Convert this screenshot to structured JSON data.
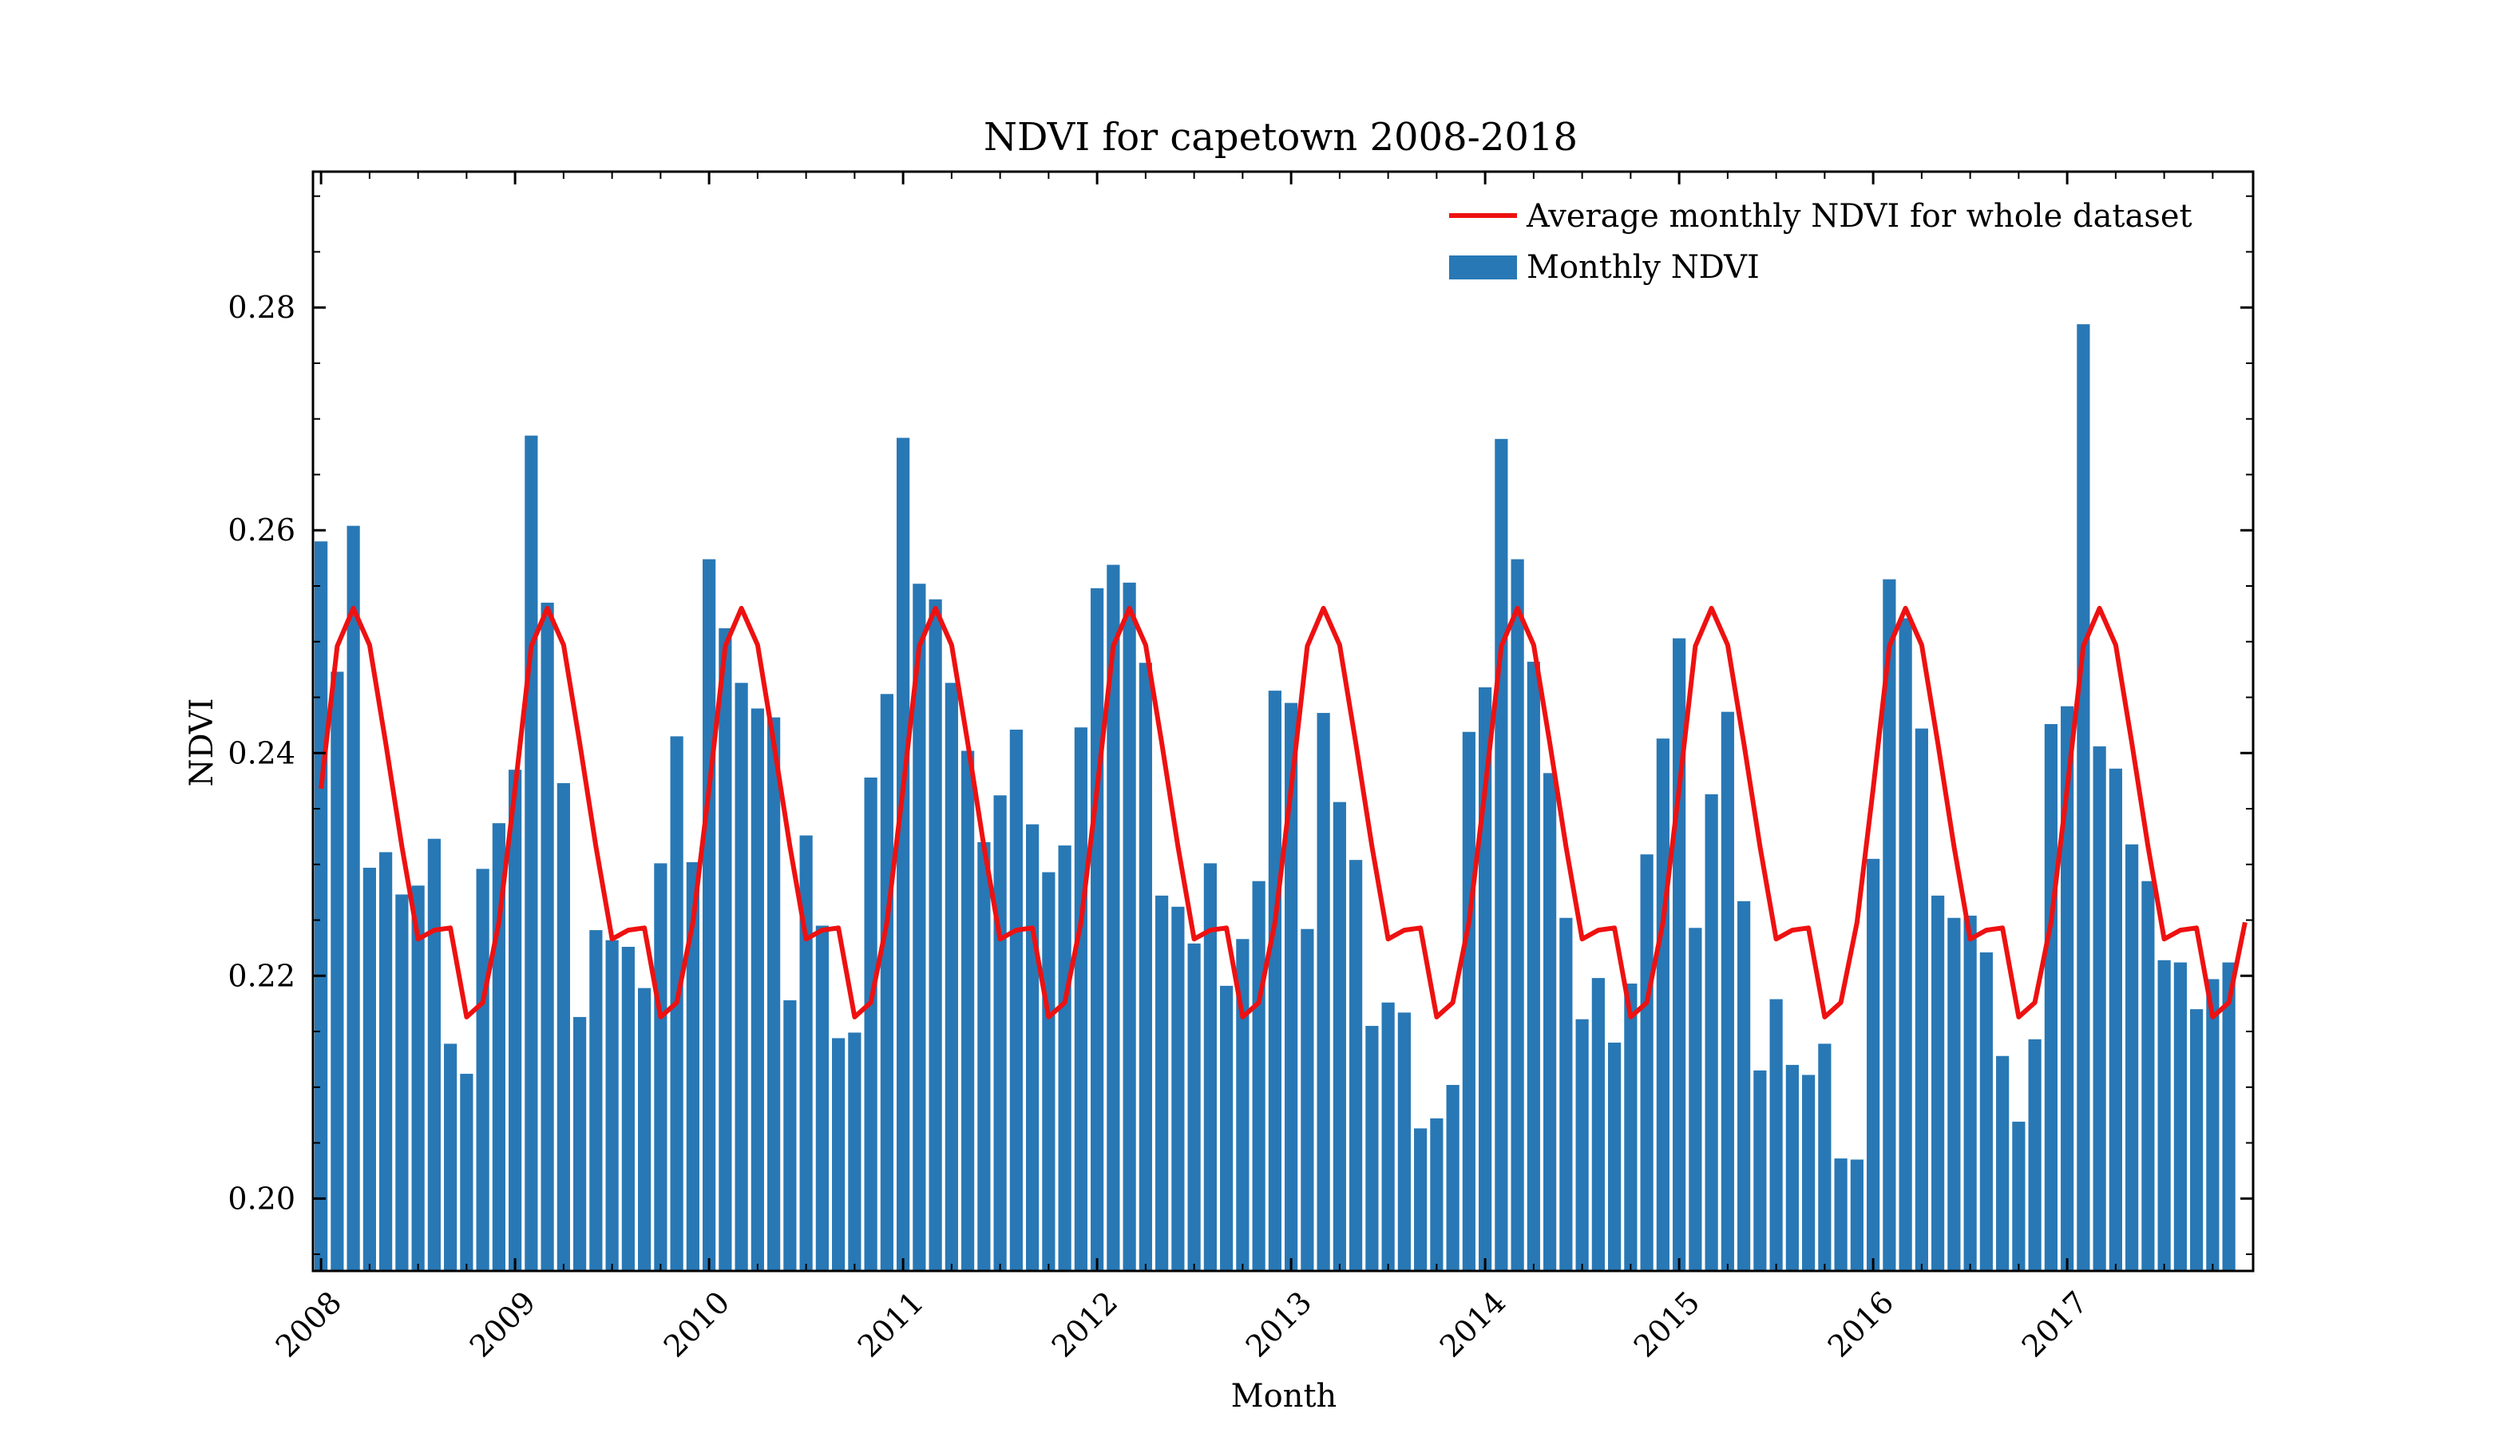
{
  "chart_data": {
    "type": "bar",
    "title": "NDVI for capetown 2008-2018",
    "xlabel": "Month",
    "ylabel": "NDVI",
    "ylim": [
      0.1935,
      0.2922
    ],
    "yticks": [
      "0.20",
      "0.22",
      "0.24",
      "0.26",
      "0.28"
    ],
    "ytick_values": [
      0.2,
      0.22,
      0.24,
      0.26,
      0.28
    ],
    "xticks": [
      "2008",
      "2009",
      "2010",
      "2011",
      "2012",
      "2013",
      "2014",
      "2015",
      "2016",
      "2017"
    ],
    "x_start": "2008-01",
    "grid": false,
    "legend_position": "upper right",
    "colors": {
      "bars": "#2878b5",
      "line": "#ee1111",
      "axes": "#000000"
    },
    "series": [
      {
        "name": "Monthly NDVI",
        "type": "bar",
        "values": [
          0.259,
          0.2473,
          0.2604,
          0.2297,
          0.2311,
          0.2273,
          0.2281,
          0.2323,
          0.2139,
          0.2112,
          0.2296,
          0.2337,
          0.2385,
          0.2685,
          0.2535,
          0.2373,
          0.2163,
          0.2241,
          0.2232,
          0.2226,
          0.2189,
          0.2301,
          0.2415,
          0.2302,
          0.2574,
          0.2512,
          0.2463,
          0.244,
          0.2432,
          0.2178,
          0.2326,
          0.2245,
          0.2144,
          0.2149,
          0.2378,
          0.2453,
          0.2683,
          0.2552,
          0.2538,
          0.2463,
          0.2402,
          0.232,
          0.2362,
          0.2421,
          0.2336,
          0.2293,
          0.2317,
          0.2423,
          0.2548,
          0.2569,
          0.2553,
          0.2481,
          0.2272,
          0.2262,
          0.2229,
          0.2301,
          0.2191,
          0.2233,
          0.2285,
          0.2456,
          0.2445,
          0.2242,
          0.2436,
          0.2356,
          0.2304,
          0.2155,
          0.2176,
          0.2167,
          0.2063,
          0.2072,
          0.2102,
          0.2419,
          0.2459,
          0.2682,
          0.2574,
          0.2482,
          0.2382,
          0.2252,
          0.2161,
          0.2198,
          0.214,
          0.2193,
          0.2309,
          0.2413,
          0.2503,
          0.2243,
          0.2363,
          0.2437,
          0.2267,
          0.2115,
          0.2179,
          0.212,
          0.2111,
          0.2139,
          0.2036,
          0.2035,
          0.2305,
          0.2556,
          0.2521,
          0.2422,
          0.2272,
          0.2252,
          0.2254,
          0.2221,
          0.2128,
          0.2069,
          0.2143,
          0.2426,
          0.2442,
          0.2785,
          0.2406,
          0.2386,
          0.2318,
          0.2285,
          0.2214,
          0.2212,
          0.217,
          0.2197,
          0.2212
        ]
      },
      {
        "name": "Average monthly NDVI for whole dataset",
        "type": "line",
        "values": [
          0.2368,
          0.2496,
          0.253,
          0.2497,
          0.2409,
          0.2316,
          0.2233,
          0.2241,
          0.2243,
          0.2163,
          0.2176,
          0.2248,
          0.2368,
          0.2496,
          0.253,
          0.2497,
          0.2409,
          0.2316,
          0.2233,
          0.2241,
          0.2243,
          0.2163,
          0.2176,
          0.2248,
          0.2368,
          0.2496,
          0.253,
          0.2497,
          0.2409,
          0.2316,
          0.2233,
          0.2241,
          0.2243,
          0.2163,
          0.2176,
          0.2248,
          0.2368,
          0.2496,
          0.253,
          0.2497,
          0.2409,
          0.2316,
          0.2233,
          0.2241,
          0.2243,
          0.2163,
          0.2176,
          0.2248,
          0.2368,
          0.2496,
          0.253,
          0.2497,
          0.2409,
          0.2316,
          0.2233,
          0.2241,
          0.2243,
          0.2163,
          0.2176,
          0.2248,
          0.2368,
          0.2496,
          0.253,
          0.2497,
          0.2409,
          0.2316,
          0.2233,
          0.2241,
          0.2243,
          0.2163,
          0.2176,
          0.2248,
          0.2368,
          0.2496,
          0.253,
          0.2497,
          0.2409,
          0.2316,
          0.2233,
          0.2241,
          0.2243,
          0.2163,
          0.2176,
          0.2248,
          0.2368,
          0.2496,
          0.253,
          0.2497,
          0.2409,
          0.2316,
          0.2233,
          0.2241,
          0.2243,
          0.2163,
          0.2176,
          0.2248,
          0.2368,
          0.2496,
          0.253,
          0.2497,
          0.2409,
          0.2316,
          0.2233,
          0.2241,
          0.2243,
          0.2163,
          0.2176,
          0.2248,
          0.2368,
          0.2496,
          0.253,
          0.2497,
          0.2409,
          0.2316,
          0.2233,
          0.2241,
          0.2243,
          0.2163,
          0.2176,
          0.2248
        ]
      }
    ]
  }
}
